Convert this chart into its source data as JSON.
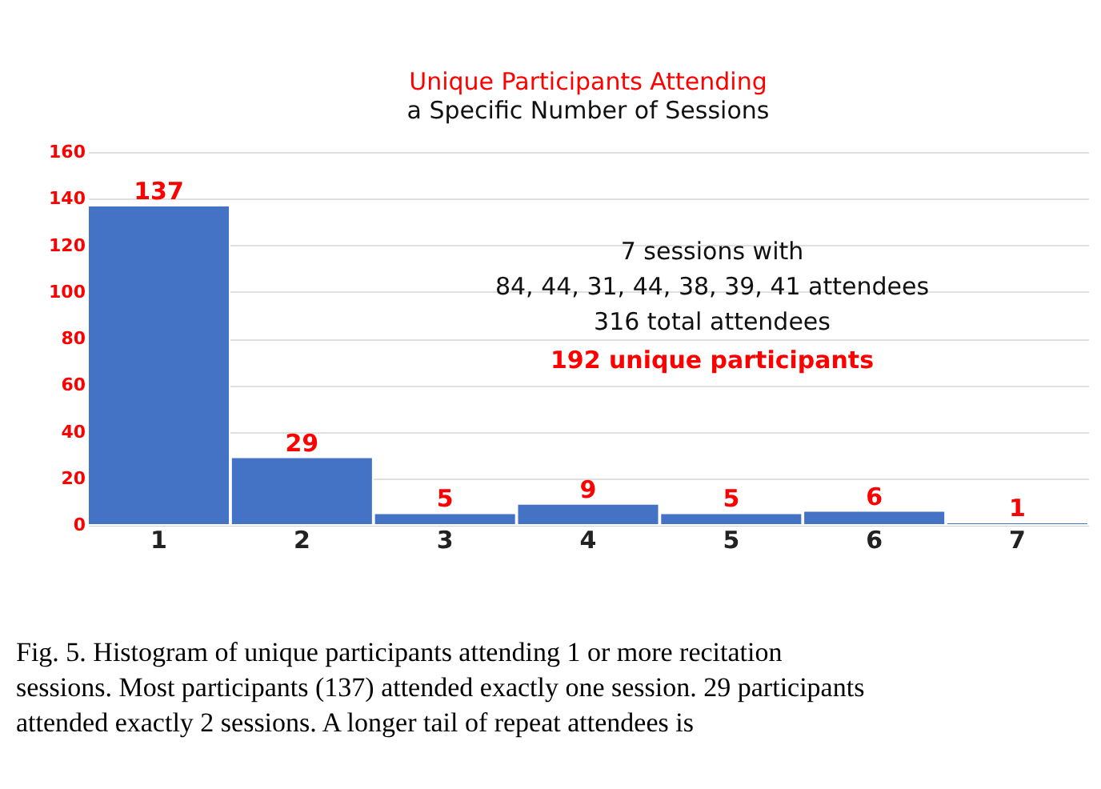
{
  "chart_data": {
    "type": "bar",
    "title": "Unique Participants Attending",
    "subtitle": "a Specific Number of Sessions",
    "categories": [
      "1",
      "2",
      "3",
      "4",
      "5",
      "6",
      "7"
    ],
    "values": [
      137,
      29,
      5,
      9,
      5,
      6,
      1
    ],
    "color": "#4472c4",
    "ylim": [
      0,
      160
    ],
    "yticks": [
      0,
      20,
      40,
      60,
      80,
      100,
      120,
      140,
      160
    ],
    "grid": "y",
    "data_labels": true,
    "annotations": [
      "7 sessions with",
      "84, 44, 31, 44, 38, 39, 41 attendees",
      "316 total attendees",
      "192 unique participants",
      "Fig. 5.  Histogram of unique participants attending 1 or more recitation sessions. Most participants (137) attended exactly one session. 29 participants attended exactly 2 sessions.  A longer tail of repeat attendees is"
    ]
  }
}
